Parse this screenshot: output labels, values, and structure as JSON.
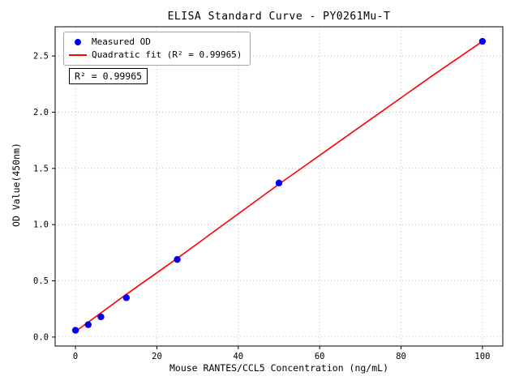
{
  "chart_data": {
    "type": "scatter",
    "title": "ELISA Standard Curve - PY0261Mu-T",
    "xlabel": "Mouse RANTES/CCL5 Concentration (ng/mL)",
    "ylabel": "OD Value(450nm)",
    "xlim": [
      -5,
      105
    ],
    "ylim": [
      -0.08,
      2.76
    ],
    "xticks": [
      0,
      20,
      40,
      60,
      80,
      100
    ],
    "yticks": [
      0.0,
      0.5,
      1.0,
      1.5,
      2.0,
      2.5
    ],
    "grid": true,
    "grid_color": "#b0b0b0",
    "annotation": "R² = 0.99965",
    "r_squared": 0.99965,
    "legend_position": "upper-left",
    "series": [
      {
        "name": "Measured OD",
        "type": "scatter",
        "color": "#0000ee",
        "x": [
          0,
          3.125,
          6.25,
          12.5,
          25,
          50,
          100
        ],
        "y": [
          0.06,
          0.11,
          0.18,
          0.35,
          0.69,
          1.37,
          2.63
        ]
      },
      {
        "name": "Quadratic fit (R² = 0.99965)",
        "type": "line",
        "color": "#ff0000",
        "x": [
          0,
          12.5,
          25,
          37.5,
          50,
          62.5,
          75,
          87.5,
          100
        ],
        "y": [
          0.05,
          0.38,
          0.7,
          1.03,
          1.36,
          1.68,
          2.0,
          2.32,
          2.63
        ]
      }
    ]
  }
}
